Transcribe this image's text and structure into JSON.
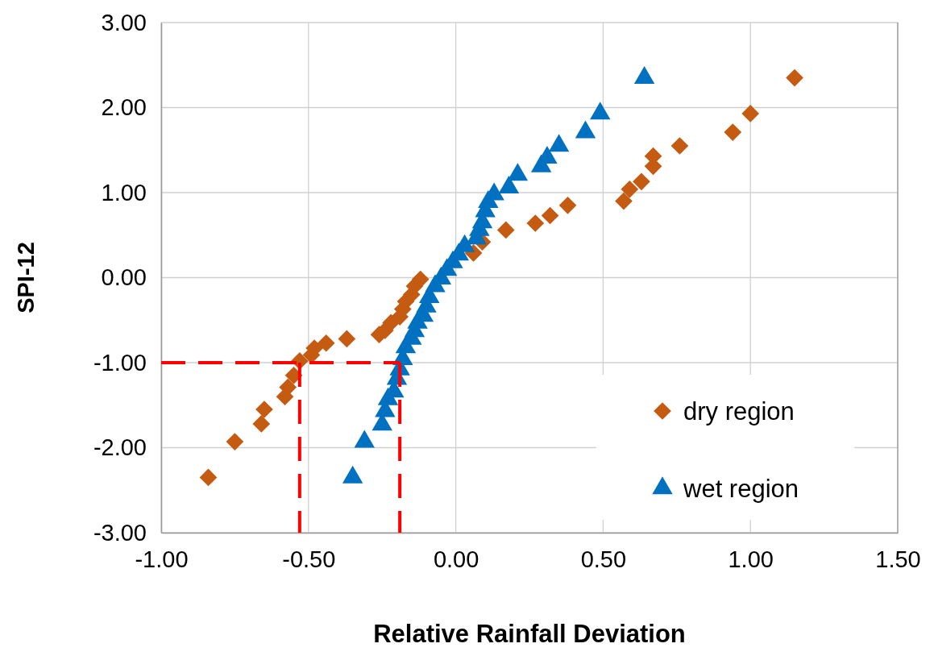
{
  "chart_data": {
    "type": "scatter",
    "xlabel": "Relative Rainfall Deviation",
    "ylabel": "SPI-12",
    "xlim": [
      -1,
      1.5
    ],
    "xticks": [
      {
        "value": -1,
        "label": "-1.00"
      },
      {
        "value": -0.5,
        "label": "-0.50"
      },
      {
        "value": 0,
        "label": "0.00"
      },
      {
        "value": 0.5,
        "label": "0.50"
      },
      {
        "value": 1,
        "label": "1.00"
      },
      {
        "value": 1.5,
        "label": "1.50"
      }
    ],
    "ylim": [
      -3,
      3
    ],
    "yticks": [
      {
        "value": -3,
        "label": "-3.00"
      },
      {
        "value": -2,
        "label": "-2.00"
      },
      {
        "value": -1,
        "label": "-1.00"
      },
      {
        "value": 0,
        "label": "0.00"
      },
      {
        "value": 1,
        "label": "1.00"
      },
      {
        "value": 2,
        "label": "2.00"
      },
      {
        "value": 3,
        "label": "3.00"
      }
    ],
    "grid": true,
    "legend": "bottom right",
    "series": [
      {
        "name": "dry region",
        "color": "#c55a11",
        "marker": "diamond",
        "x": [
          -0.84,
          -0.75,
          -0.66,
          -0.65,
          -0.58,
          -0.57,
          -0.55,
          -0.53,
          -0.49,
          -0.48,
          -0.44,
          -0.37,
          -0.26,
          -0.24,
          -0.22,
          -0.19,
          -0.18,
          -0.17,
          -0.15,
          -0.14,
          -0.12,
          0.06,
          0.09,
          0.17,
          0.27,
          0.32,
          0.38,
          0.57,
          0.59,
          0.63,
          0.67,
          0.67,
          0.76,
          0.94,
          1.0,
          1.15
        ],
        "values": [
          -2.35,
          -1.93,
          -1.72,
          -1.55,
          -1.4,
          -1.29,
          -1.15,
          -0.98,
          -0.91,
          -0.83,
          -0.77,
          -0.72,
          -0.67,
          -0.62,
          -0.53,
          -0.46,
          -0.37,
          -0.28,
          -0.2,
          -0.1,
          -0.02,
          0.29,
          0.42,
          0.56,
          0.64,
          0.73,
          0.85,
          0.9,
          1.04,
          1.13,
          1.31,
          1.43,
          1.55,
          1.71,
          1.93,
          2.35
        ]
      },
      {
        "name": "wet region",
        "color": "#0070c0",
        "marker": "triangle",
        "x": [
          -0.35,
          -0.31,
          -0.25,
          -0.24,
          -0.23,
          -0.21,
          -0.2,
          -0.19,
          -0.18,
          -0.17,
          -0.15,
          -0.14,
          -0.13,
          -0.11,
          -0.1,
          -0.09,
          -0.07,
          -0.05,
          -0.03,
          -0.01,
          0.01,
          0.03,
          0.07,
          0.08,
          0.09,
          0.1,
          0.11,
          0.13,
          0.18,
          0.21,
          0.29,
          0.31,
          0.35,
          0.44,
          0.49,
          0.64
        ],
        "values": [
          -2.35,
          -1.93,
          -1.73,
          -1.57,
          -1.43,
          -1.34,
          -1.19,
          -1.08,
          -0.96,
          -0.82,
          -0.72,
          -0.63,
          -0.53,
          -0.45,
          -0.34,
          -0.23,
          -0.1,
          -0.01,
          0.09,
          0.18,
          0.27,
          0.37,
          0.46,
          0.56,
          0.65,
          0.78,
          0.89,
          0.98,
          1.06,
          1.21,
          1.31,
          1.41,
          1.55,
          1.71,
          1.93,
          2.35
        ]
      },
      {
        "type": "line",
        "color": "#ff0000",
        "marker": "none",
        "line_style": "dashed",
        "x": [
          -1,
          -0.19
        ],
        "values": [
          -1,
          -1
        ]
      },
      {
        "type": "line",
        "color": "#ff0000",
        "marker": "none",
        "line_style": "dashed",
        "x": [
          -0.53,
          -0.53
        ],
        "values": [
          -1,
          -3
        ]
      },
      {
        "type": "line",
        "color": "#ff0000",
        "marker": "none",
        "line_style": "dashed",
        "x": [
          -0.19,
          -0.19
        ],
        "values": [
          -1,
          -3
        ]
      }
    ]
  }
}
